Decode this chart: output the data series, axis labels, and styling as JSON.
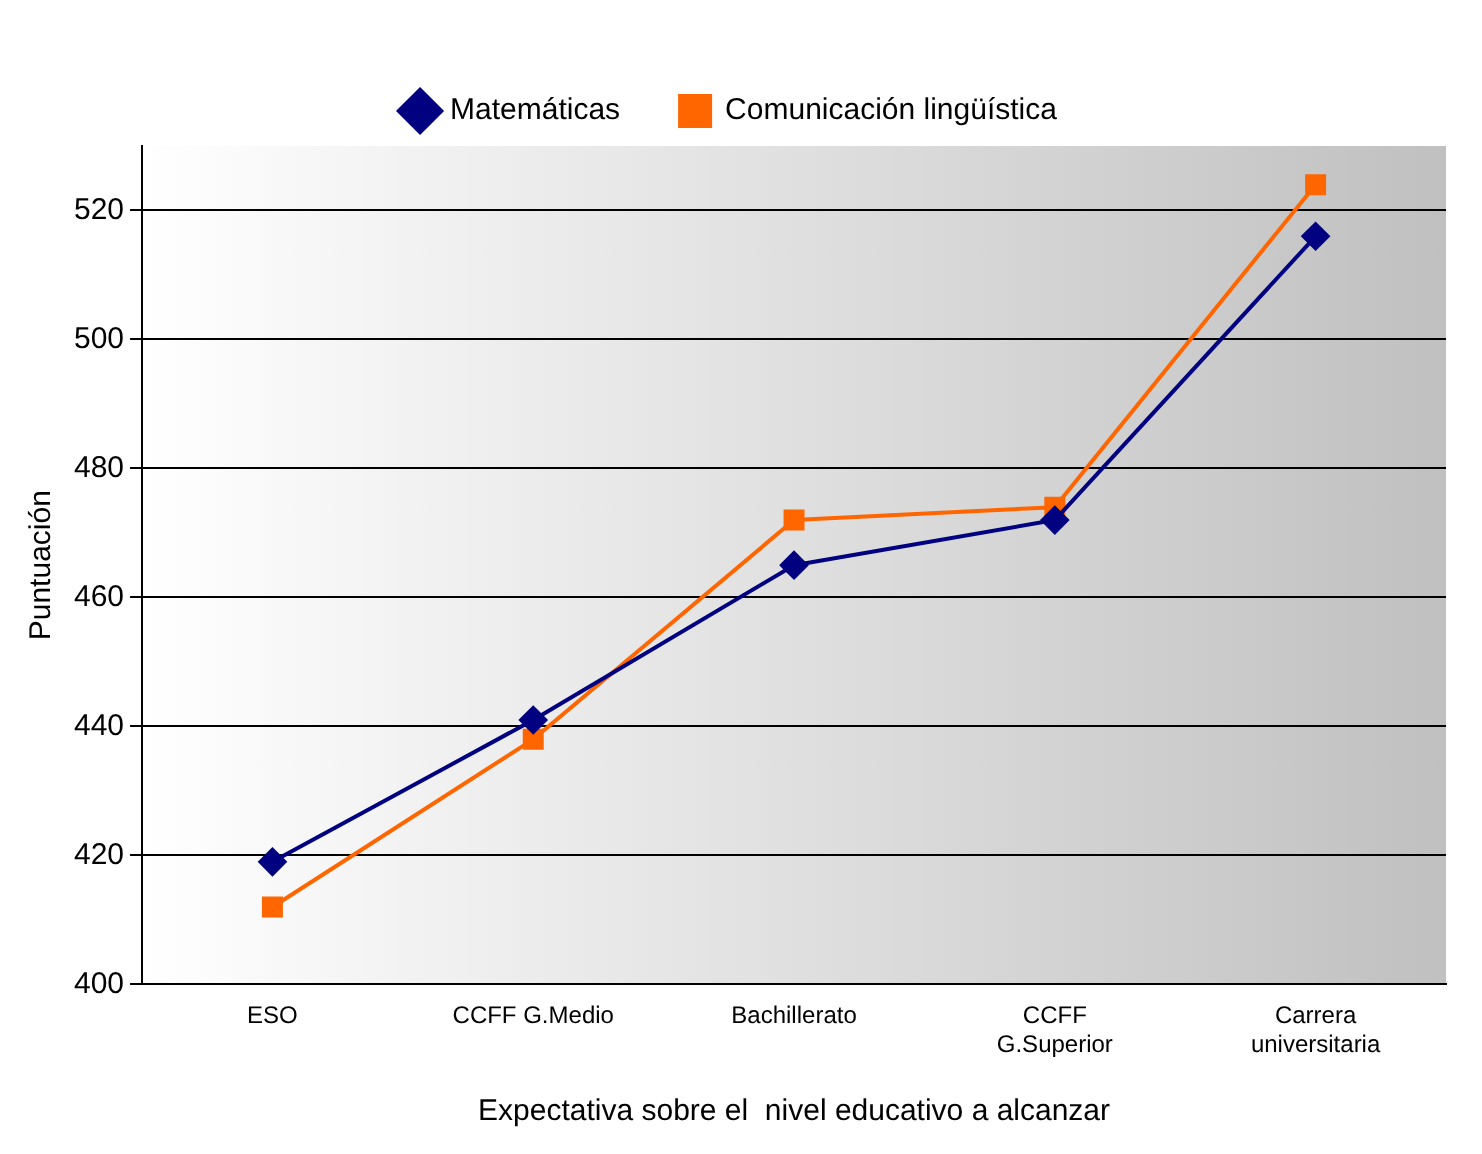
{
  "chart_data": {
    "type": "line",
    "xlabel": "Expectativa sobre el  nivel educativo a alcanzar",
    "ylabel": "Puntuación",
    "categories": [
      "ESO",
      "CCFF G.Medio",
      "Bachillerato",
      "CCFF\nG.Superior",
      "Carrera\nuniversitaria"
    ],
    "series": [
      {
        "name": "Matemáticas",
        "color": "#000080",
        "marker": "diamond",
        "values": [
          419,
          441,
          465,
          472,
          516
        ]
      },
      {
        "name": "Comunicación lingüística",
        "color": "#ff6600",
        "marker": "square",
        "values": [
          412,
          438,
          472,
          474,
          524
        ]
      }
    ],
    "ylim": [
      400,
      530
    ],
    "yticks": [
      400,
      420,
      440,
      460,
      480,
      500,
      520
    ],
    "grid": "y",
    "legend": "top",
    "line_style": "solid"
  }
}
